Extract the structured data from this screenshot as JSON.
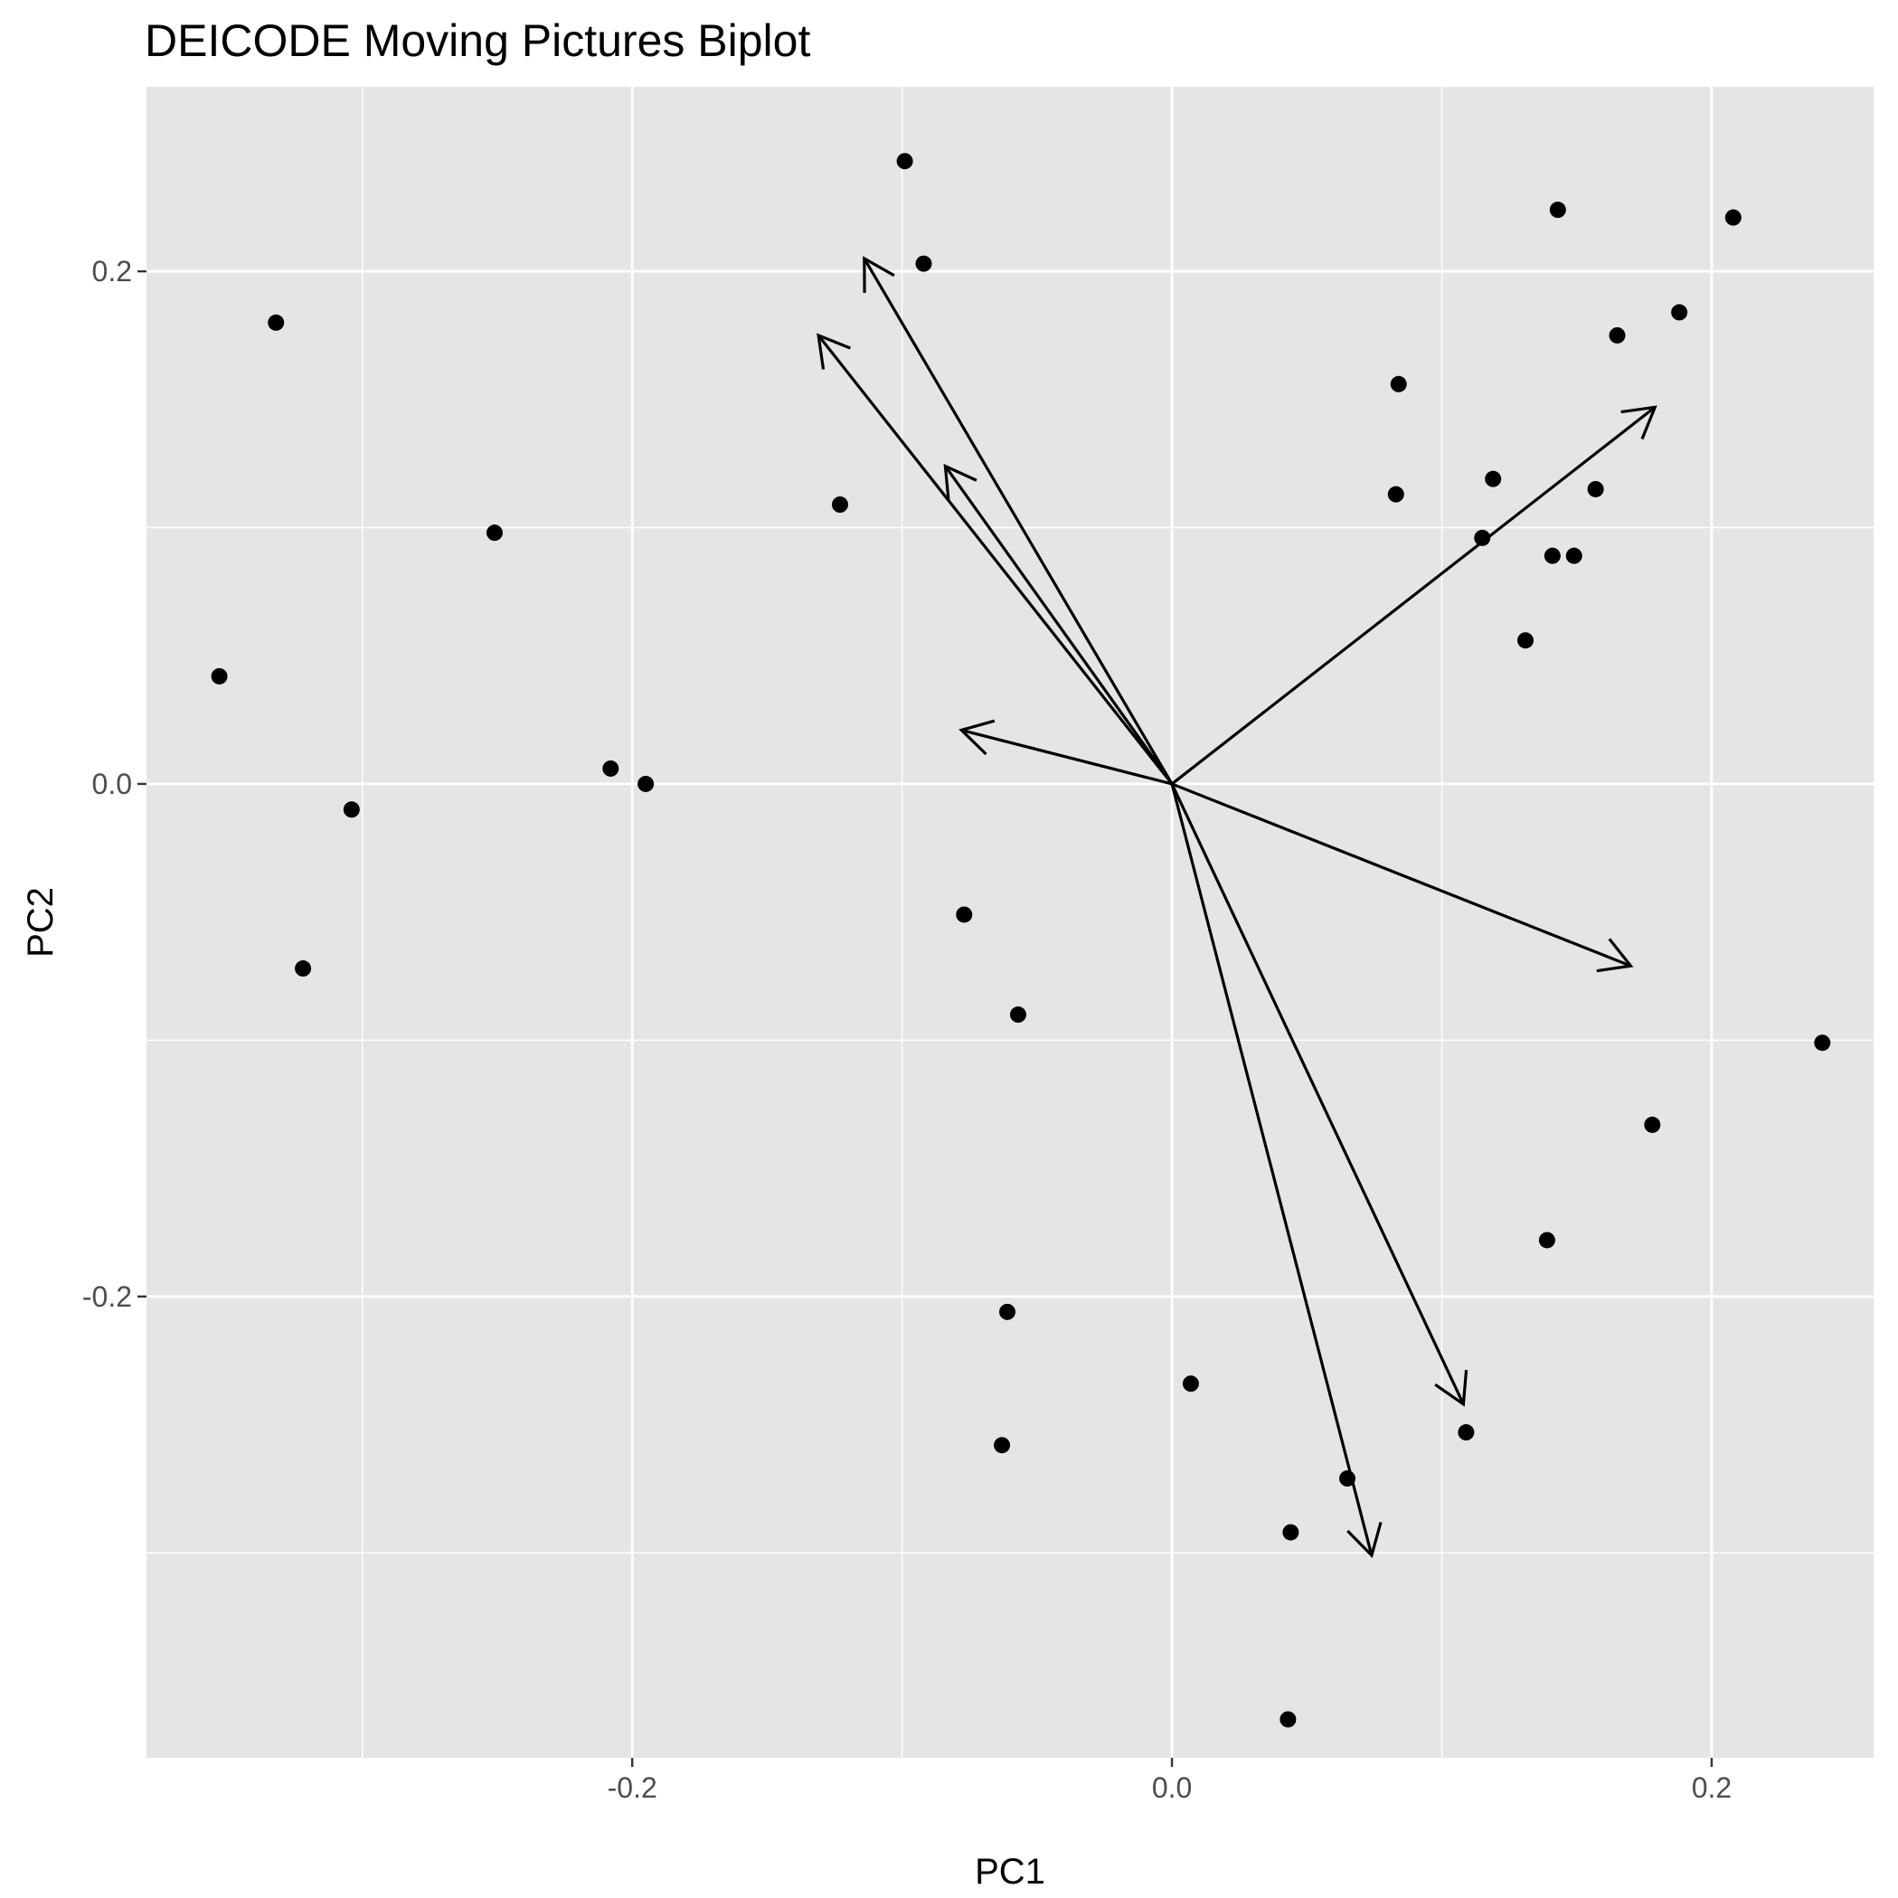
{
  "chart_data": {
    "type": "scatter",
    "subtype": "biplot",
    "title": "DEICODE Moving Pictures Biplot",
    "xlabel": "PC1",
    "ylabel": "PC2",
    "xlim": [
      -0.38,
      0.26
    ],
    "ylim": [
      -0.38,
      0.272
    ],
    "x_ticks": [
      -0.2,
      0.0,
      0.2
    ],
    "x_tick_labels": [
      "-0.2",
      "0.0",
      "0.2"
    ],
    "y_ticks": [
      -0.2,
      0.0,
      0.2
    ],
    "y_tick_labels": [
      "-0.2",
      "0.0",
      "0.2"
    ],
    "grid": true,
    "legend": "none",
    "colors": {
      "panel": "#e5e5e5",
      "grid": "#ffffff",
      "point": "#000000",
      "arrow": "#000000"
    },
    "points": [
      {
        "x": -0.099,
        "y": 0.243
      },
      {
        "x": -0.092,
        "y": 0.203
      },
      {
        "x": 0.143,
        "y": 0.224
      },
      {
        "x": 0.208,
        "y": 0.221
      },
      {
        "x": -0.332,
        "y": 0.18
      },
      {
        "x": 0.188,
        "y": 0.184
      },
      {
        "x": 0.165,
        "y": 0.175
      },
      {
        "x": 0.084,
        "y": 0.156
      },
      {
        "x": -0.123,
        "y": 0.109
      },
      {
        "x": 0.083,
        "y": 0.113
      },
      {
        "x": 0.119,
        "y": 0.119
      },
      {
        "x": 0.157,
        "y": 0.115
      },
      {
        "x": -0.251,
        "y": 0.098
      },
      {
        "x": 0.115,
        "y": 0.096
      },
      {
        "x": 0.141,
        "y": 0.089
      },
      {
        "x": 0.149,
        "y": 0.089
      },
      {
        "x": 0.131,
        "y": 0.056
      },
      {
        "x": -0.353,
        "y": 0.042
      },
      {
        "x": -0.208,
        "y": 0.006
      },
      {
        "x": -0.195,
        "y": 0.0
      },
      {
        "x": -0.304,
        "y": -0.01
      },
      {
        "x": -0.077,
        "y": -0.051
      },
      {
        "x": -0.322,
        "y": -0.072
      },
      {
        "x": -0.057,
        "y": -0.09
      },
      {
        "x": 0.241,
        "y": -0.101
      },
      {
        "x": 0.178,
        "y": -0.133
      },
      {
        "x": 0.139,
        "y": -0.178
      },
      {
        "x": -0.061,
        "y": -0.206
      },
      {
        "x": 0.007,
        "y": -0.234
      },
      {
        "x": 0.109,
        "y": -0.253
      },
      {
        "x": -0.063,
        "y": -0.258
      },
      {
        "x": 0.065,
        "y": -0.271
      },
      {
        "x": 0.044,
        "y": -0.292
      },
      {
        "x": 0.043,
        "y": -0.365
      }
    ],
    "arrows": [
      {
        "x0": 0,
        "y0": 0,
        "x1": -0.114,
        "y1": 0.205
      },
      {
        "x0": 0,
        "y0": 0,
        "x1": -0.131,
        "y1": 0.175
      },
      {
        "x0": 0,
        "y0": 0,
        "x1": -0.084,
        "y1": 0.124
      },
      {
        "x0": 0,
        "y0": 0,
        "x1": -0.078,
        "y1": 0.021
      },
      {
        "x0": 0,
        "y0": 0,
        "x1": 0.179,
        "y1": 0.147
      },
      {
        "x0": 0,
        "y0": 0,
        "x1": 0.17,
        "y1": -0.071
      },
      {
        "x0": 0,
        "y0": 0,
        "x1": 0.108,
        "y1": -0.242
      },
      {
        "x0": 0,
        "y0": 0,
        "x1": 0.074,
        "y1": -0.301
      }
    ]
  }
}
